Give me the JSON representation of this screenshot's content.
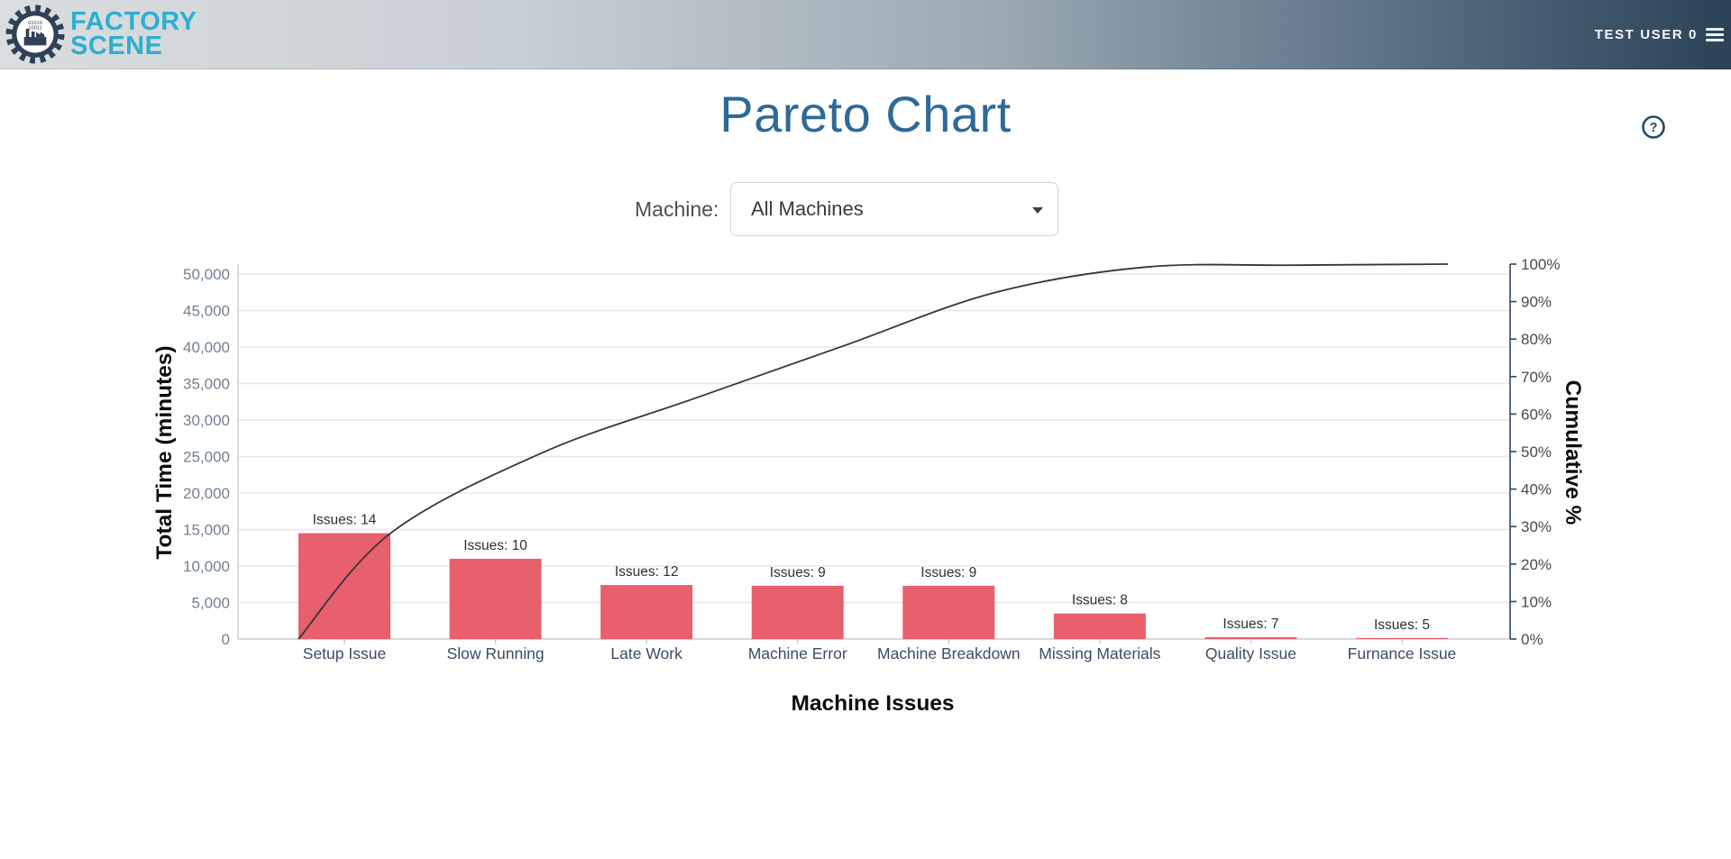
{
  "header": {
    "brand_line1": "FACTORY",
    "brand_line2": "SCENE",
    "user_label": "TEST USER 0"
  },
  "page": {
    "title": "Pareto Chart",
    "help_glyph": "?"
  },
  "controls": {
    "machine_label": "Machine:",
    "machine_selected_value": "All Machines"
  },
  "chart_data": {
    "type": "bar",
    "subtype": "pareto-with-cumulative-line",
    "title": "",
    "xlabel": "Machine Issues",
    "ylabel_left": "Total Time (minutes)",
    "ylabel_right": "Cumulative %",
    "categories": [
      "Setup Issue",
      "Slow Running",
      "Late Work",
      "Machine Error",
      "Machine Breakdown",
      "Missing Materials",
      "Quality Issue",
      "Furnance Issue"
    ],
    "series": [
      {
        "name": "Total Time (minutes)",
        "type": "bar",
        "values": [
          14500,
          11000,
          7400,
          7300,
          7300,
          3500,
          250,
          150
        ]
      },
      {
        "name": "Cumulative %",
        "type": "line",
        "values": [
          28.2,
          49.6,
          64.0,
          78.2,
          92.4,
          99.2,
          99.7,
          100.0
        ]
      }
    ],
    "issue_counts": [
      14,
      10,
      12,
      9,
      9,
      8,
      7,
      5
    ],
    "bar_labels": [
      "Issues: 14",
      "Issues: 10",
      "Issues: 12",
      "Issues: 9",
      "Issues: 9",
      "Issues: 8",
      "Issues: 7",
      "Issues: 5"
    ],
    "ylim_left": [
      0,
      50000
    ],
    "y_left_tick_step": 5000,
    "ylim_right": [
      0,
      100
    ],
    "y_right_tick_step": 10,
    "grid": true,
    "legend": "none",
    "colors": {
      "bar": "#e85f6d",
      "line": "#35353d",
      "grid": "#e7e7e7",
      "axis_gray": "#c9ccd1",
      "axis_right": "#32475c",
      "tick_text_left": "#72808e",
      "tick_text_right": "#4a4a4a",
      "category_text": "#3c4d61",
      "bar_label_text": "#2f2f38",
      "axis_title_text": "#0d0d0d"
    }
  }
}
